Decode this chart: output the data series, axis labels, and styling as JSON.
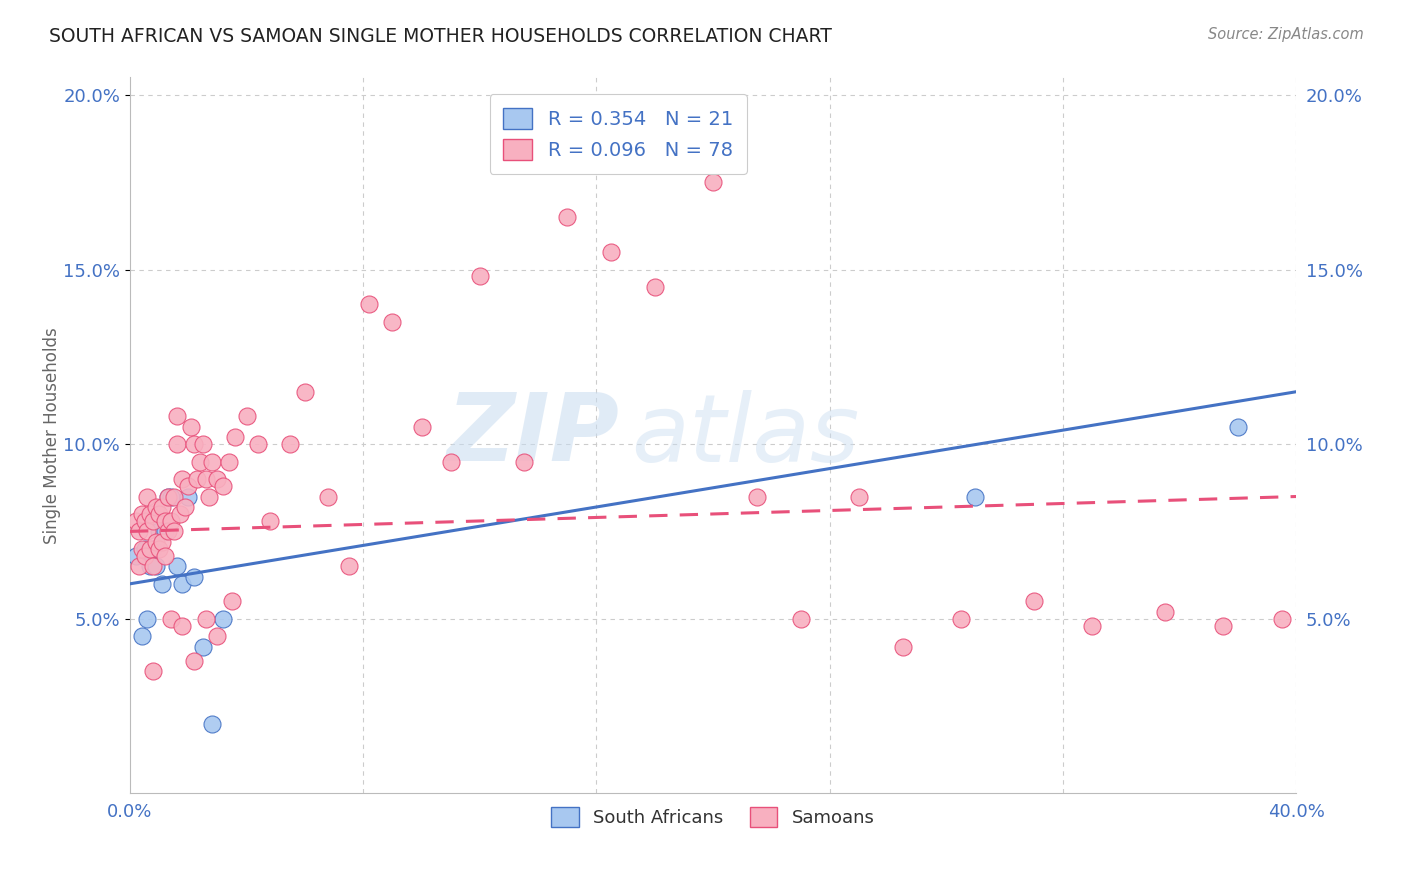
{
  "title": "SOUTH AFRICAN VS SAMOAN SINGLE MOTHER HOUSEHOLDS CORRELATION CHART",
  "source": "Source: ZipAtlas.com",
  "ylabel": "Single Mother Households",
  "xlim": [
    0.0,
    0.4
  ],
  "ylim": [
    0.0,
    0.205
  ],
  "yticks": [
    0.05,
    0.1,
    0.15,
    0.2
  ],
  "ytick_labels": [
    "5.0%",
    "10.0%",
    "15.0%",
    "20.0%"
  ],
  "south_african_R": 0.354,
  "south_african_N": 21,
  "samoan_R": 0.096,
  "samoan_N": 78,
  "south_african_color": "#A8C8F0",
  "samoan_color": "#F8B0C0",
  "south_african_line_color": "#4472C4",
  "samoan_line_color": "#E8507A",
  "background_color": "#FFFFFF",
  "grid_color": "#CCCCCC",
  "watermark_zip": "ZIP",
  "watermark_atlas": "atlas",
  "title_color": "#222222",
  "axis_label_color": "#4472C4",
  "sa_line_start_y": 0.06,
  "sa_line_end_y": 0.115,
  "sam_line_start_y": 0.075,
  "sam_line_end_y": 0.085,
  "south_african_x": [
    0.002,
    0.004,
    0.005,
    0.006,
    0.007,
    0.008,
    0.009,
    0.01,
    0.011,
    0.012,
    0.013,
    0.014,
    0.016,
    0.018,
    0.02,
    0.022,
    0.025,
    0.028,
    0.032,
    0.29,
    0.38
  ],
  "south_african_y": [
    0.068,
    0.045,
    0.07,
    0.05,
    0.065,
    0.07,
    0.065,
    0.075,
    0.06,
    0.075,
    0.085,
    0.085,
    0.065,
    0.06,
    0.085,
    0.062,
    0.042,
    0.02,
    0.05,
    0.085,
    0.105
  ],
  "samoan_x": [
    0.002,
    0.003,
    0.003,
    0.004,
    0.004,
    0.005,
    0.005,
    0.006,
    0.006,
    0.007,
    0.007,
    0.008,
    0.008,
    0.009,
    0.009,
    0.01,
    0.01,
    0.011,
    0.011,
    0.012,
    0.012,
    0.013,
    0.013,
    0.014,
    0.015,
    0.015,
    0.016,
    0.016,
    0.017,
    0.018,
    0.019,
    0.02,
    0.021,
    0.022,
    0.023,
    0.024,
    0.025,
    0.026,
    0.027,
    0.028,
    0.03,
    0.032,
    0.034,
    0.036,
    0.04,
    0.044,
    0.048,
    0.055,
    0.06,
    0.068,
    0.075,
    0.082,
    0.09,
    0.1,
    0.11,
    0.12,
    0.135,
    0.15,
    0.165,
    0.18,
    0.2,
    0.215,
    0.23,
    0.25,
    0.265,
    0.285,
    0.31,
    0.33,
    0.355,
    0.375,
    0.395,
    0.008,
    0.014,
    0.018,
    0.022,
    0.026,
    0.03,
    0.035
  ],
  "samoan_y": [
    0.078,
    0.065,
    0.075,
    0.07,
    0.08,
    0.068,
    0.078,
    0.075,
    0.085,
    0.07,
    0.08,
    0.065,
    0.078,
    0.072,
    0.082,
    0.07,
    0.08,
    0.072,
    0.082,
    0.068,
    0.078,
    0.075,
    0.085,
    0.078,
    0.075,
    0.085,
    0.1,
    0.108,
    0.08,
    0.09,
    0.082,
    0.088,
    0.105,
    0.1,
    0.09,
    0.095,
    0.1,
    0.09,
    0.085,
    0.095,
    0.09,
    0.088,
    0.095,
    0.102,
    0.108,
    0.1,
    0.078,
    0.1,
    0.115,
    0.085,
    0.065,
    0.14,
    0.135,
    0.105,
    0.095,
    0.148,
    0.095,
    0.165,
    0.155,
    0.145,
    0.175,
    0.085,
    0.05,
    0.085,
    0.042,
    0.05,
    0.055,
    0.048,
    0.052,
    0.048,
    0.05,
    0.035,
    0.05,
    0.048,
    0.038,
    0.05,
    0.045,
    0.055
  ]
}
